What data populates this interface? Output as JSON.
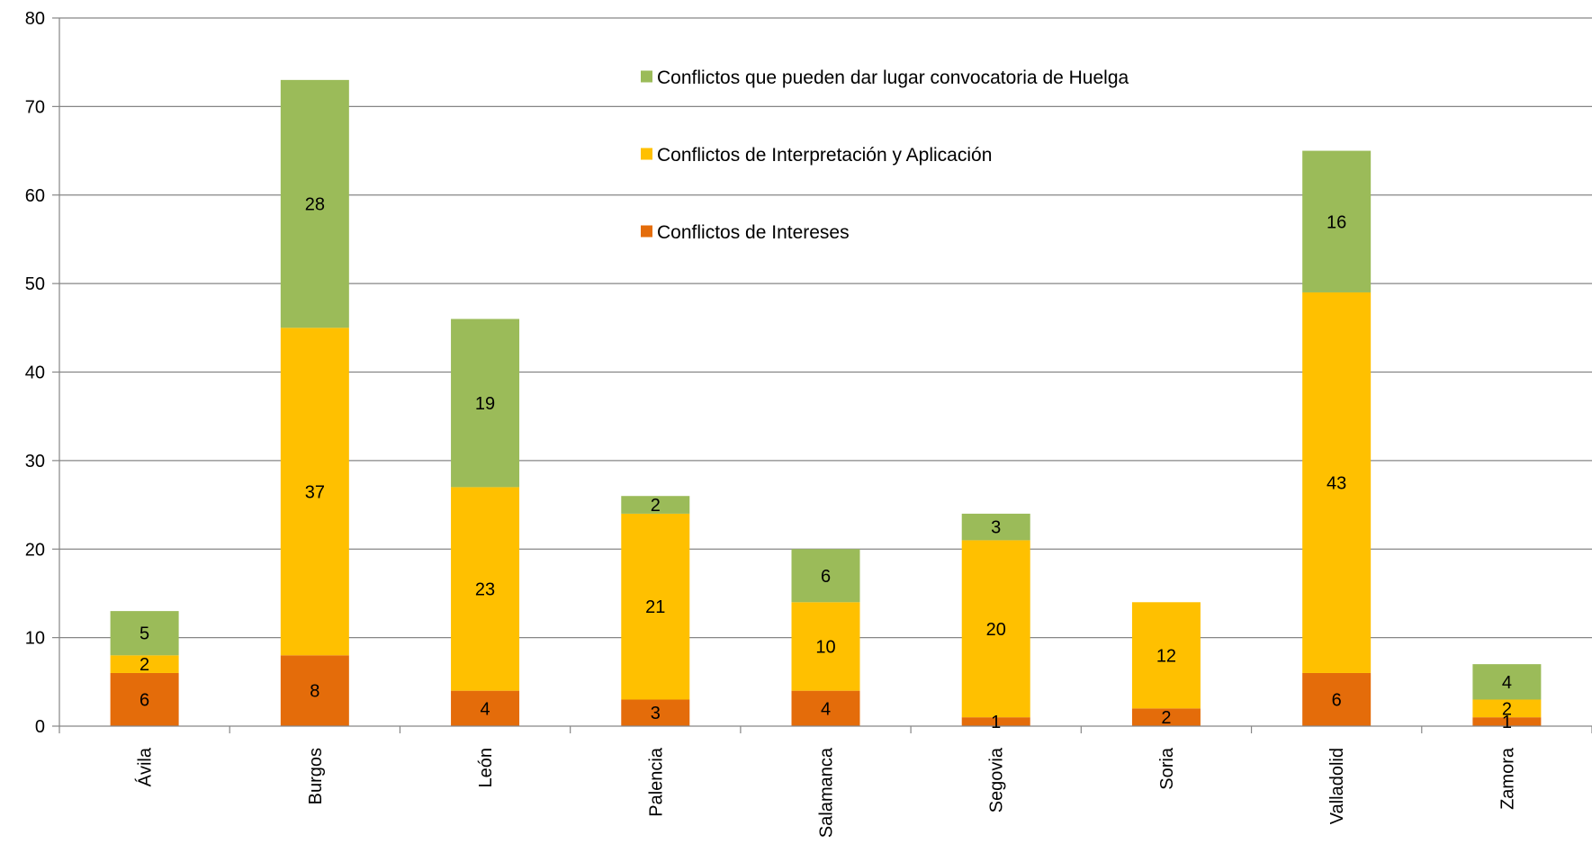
{
  "chart_data": {
    "type": "bar",
    "stacked": true,
    "title": "",
    "xlabel": "",
    "ylabel": "",
    "ylim": [
      0,
      80
    ],
    "yticks": [
      0,
      10,
      20,
      30,
      40,
      50,
      60,
      70,
      80
    ],
    "grid": true,
    "legend_position": "top-center",
    "categories": [
      "Ávila",
      "Burgos",
      "León",
      "Palencia",
      "Salamanca",
      "Segovia",
      "Soria",
      "Valladolid",
      "Zamora"
    ],
    "series": [
      {
        "name": "Conflictos de Intereses",
        "color": "#E46C0A",
        "values": [
          6,
          8,
          4,
          3,
          4,
          1,
          2,
          6,
          1
        ]
      },
      {
        "name": "Conflictos de Interpretación y Aplicación",
        "color": "#FFC000",
        "values": [
          2,
          37,
          23,
          21,
          10,
          20,
          12,
          43,
          2
        ]
      },
      {
        "name": "Conflictos que pueden dar lugar convocatoria de Huelga",
        "color": "#9BBB59",
        "values": [
          5,
          28,
          19,
          2,
          6,
          3,
          null,
          16,
          4
        ]
      }
    ],
    "legend_order": [
      2,
      1,
      0
    ]
  }
}
